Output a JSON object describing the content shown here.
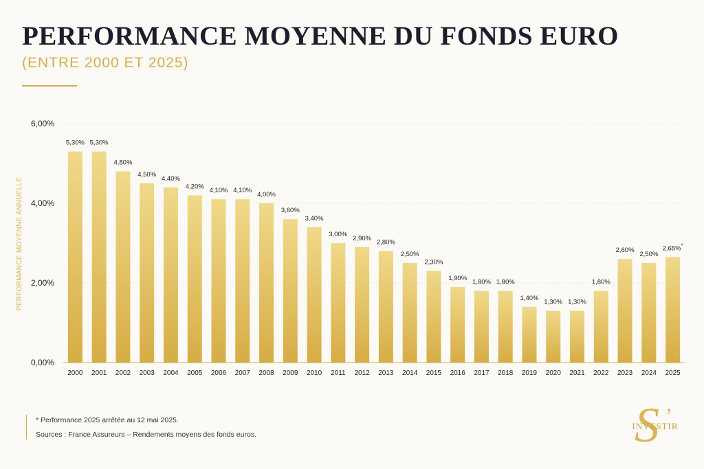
{
  "header": {
    "title": "PERFORMANCE MOYENNE DU FONDS EURO",
    "subtitle": "(ENTRE 2000 ET 2025)"
  },
  "footer": {
    "note": "* Performance 2025 arrêtée au 12 mai 2025.",
    "sources": "Sources : France Assureurs – Rendements moyens des fonds euros."
  },
  "logo": {
    "big": "S",
    "apostrophe": "’",
    "text": "INVESTIR"
  },
  "colors": {
    "accent": "#d4b04a",
    "bar_top": "#f0d98a",
    "bar_bottom": "#d6ad45",
    "title": "#1d1d2b"
  },
  "chart_data": {
    "type": "bar",
    "ylabel": "PERFORMANCE MOYENNE ANNUELLE",
    "xlabel": "",
    "ylim": [
      0,
      6
    ],
    "yticks": [
      "0,00%",
      "2,00%",
      "4,00%",
      "6,00%"
    ],
    "grid": true,
    "categories": [
      "2000",
      "2001",
      "2002",
      "2003",
      "2004",
      "2005",
      "2006",
      "2007",
      "2008",
      "2009",
      "2010",
      "2011",
      "2012",
      "2013",
      "2014",
      "2015",
      "2016",
      "2017",
      "2018",
      "2019",
      "2020",
      "2021",
      "2022",
      "2023",
      "2024",
      "2025"
    ],
    "values": [
      5.3,
      5.3,
      4.8,
      4.5,
      4.4,
      4.2,
      4.1,
      4.1,
      4.0,
      3.6,
      3.4,
      3.0,
      2.9,
      2.8,
      2.5,
      2.3,
      1.9,
      1.8,
      1.8,
      1.4,
      1.3,
      1.3,
      1.8,
      2.6,
      2.5,
      2.65
    ],
    "labels": [
      "5,30%",
      "5,30%",
      "4,80%",
      "4,50%",
      "4,40%",
      "4,20%",
      "4,10%",
      "4,10%",
      "4,00%",
      "3,60%",
      "3,40%",
      "3,00%",
      "2,90%",
      "2,80%",
      "2,50%",
      "2,30%",
      "1,90%",
      "1,80%",
      "1,80%",
      "1,40%",
      "1,30%",
      "1,30%",
      "1,80%",
      "2,60%",
      "2,50%",
      "2,65%"
    ],
    "asterisk_label": "*"
  }
}
